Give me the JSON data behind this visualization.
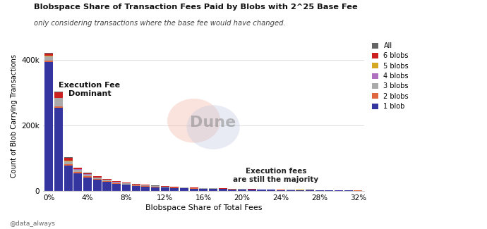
{
  "title": "Blobspace Share of Transaction Fees Paid by Blobs with 2^25 Base Fee",
  "subtitle": "only considering transactions where the base fee would have changed.",
  "xlabel": "Blobspace Share of Total Fees",
  "ylabel": "Count of Blob Carrying Transactions",
  "annotation1": "Execution Fee\nDominant",
  "annotation2": "Execution fees\nare still the majority",
  "watermark": "Dune",
  "footer": "@data_always",
  "bg_color": "#ffffff",
  "colors": {
    "1 blob": "#3535a0",
    "2 blobs": "#e06840",
    "3 blobs": "#aaaaaa",
    "4 blobs": "#b070c0",
    "5 blobs": "#d4a820",
    "6 blobs": "#cc2020",
    "All": "#666666"
  },
  "legend_order": [
    "All",
    "6 blobs",
    "5 blobs",
    "4 blobs",
    "3 blobs",
    "2 blobs",
    "1 blob"
  ],
  "ylim": [
    0,
    460000
  ],
  "yticks": [
    0,
    200000,
    400000
  ],
  "xtick_step": 4,
  "num_bins": 33,
  "bars": {
    "1 blob": [
      395000,
      255000,
      78000,
      55000,
      42000,
      34000,
      28000,
      22000,
      19000,
      16000,
      14000,
      12000,
      10500,
      9500,
      8500,
      7500,
      7000,
      6500,
      6000,
      5500,
      5000,
      4500,
      4200,
      3800,
      3500,
      3200,
      2900,
      2700,
      2400,
      2100,
      1900,
      1700,
      1500
    ],
    "2 blobs": [
      4500,
      3500,
      4000,
      3500,
      3000,
      2500,
      2200,
      2000,
      1800,
      1600,
      1400,
      1200,
      1100,
      1000,
      900,
      800,
      750,
      700,
      650,
      600,
      550,
      500,
      460,
      420,
      380,
      350,
      320,
      290,
      260,
      240,
      220,
      200,
      180
    ],
    "3 blobs": [
      12000,
      25000,
      9000,
      7000,
      5500,
      4500,
      3800,
      3200,
      2800,
      2400,
      2100,
      1800,
      1600,
      1400,
      1200,
      1100,
      1000,
      900,
      820,
      740,
      680,
      620,
      570,
      520,
      480,
      430,
      390,
      360,
      330,
      300,
      270,
      250,
      230
    ],
    "4 blobs": [
      800,
      800,
      900,
      800,
      700,
      600,
      550,
      480,
      430,
      380,
      340,
      300,
      270,
      240,
      220,
      200,
      180,
      160,
      150,
      135,
      120,
      110,
      100,
      90,
      82,
      75,
      68,
      62,
      56,
      50,
      45,
      41,
      37
    ],
    "5 blobs": [
      400,
      400,
      450,
      400,
      350,
      300,
      270,
      240,
      210,
      190,
      170,
      150,
      135,
      120,
      108,
      97,
      87,
      78,
      71,
      64,
      58,
      52,
      47,
      43,
      39,
      35,
      32,
      29,
      26,
      24,
      22,
      20,
      18
    ],
    "6 blobs": [
      7000,
      17000,
      9000,
      4500,
      3500,
      2800,
      2300,
      2000,
      1700,
      1500,
      1300,
      1100,
      1000,
      900,
      800,
      700,
      640,
      580,
      520,
      470,
      430,
      390,
      350,
      320,
      290,
      260,
      240,
      215,
      195,
      175,
      160,
      145,
      130
    ],
    "All": [
      1500,
      1500,
      1800,
      1200,
      900,
      700,
      580,
      480,
      420,
      370,
      330,
      290,
      260,
      230,
      210,
      185,
      170,
      155,
      140,
      128,
      116,
      105,
      95,
      87,
      79,
      72,
      65,
      59,
      54,
      49,
      44,
      40,
      36
    ]
  }
}
